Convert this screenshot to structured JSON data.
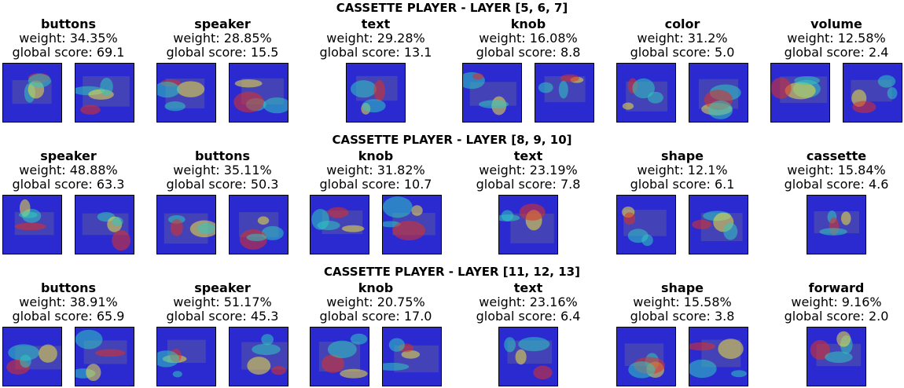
{
  "rows": [
    {
      "title": "CASSETTE PLAYER - LAYER [5, 6, 7]",
      "concepts": [
        {
          "name": "buttons",
          "weight": "weight: 34.35%",
          "score": "global score: 69.1",
          "images": 2
        },
        {
          "name": "speaker",
          "weight": "weight: 28.85%",
          "score": "global score: 15.5",
          "images": 2
        },
        {
          "name": "text",
          "weight": "weight: 29.28%",
          "score": "global score: 13.1",
          "images": 1
        },
        {
          "name": "knob",
          "weight": "weight: 16.08%",
          "score": "global score: 8.8",
          "images": 2
        },
        {
          "name": "color",
          "weight": "weight: 31.2%",
          "score": "global score: 5.0",
          "images": 2
        },
        {
          "name": "volume",
          "weight": "weight: 12.58%",
          "score": "global score: 2.4",
          "images": 2
        }
      ]
    },
    {
      "title": "CASSETTE PLAYER - LAYER [8, 9, 10]",
      "concepts": [
        {
          "name": "speaker",
          "weight": "weight: 48.88%",
          "score": "global score: 63.3",
          "images": 2
        },
        {
          "name": "buttons",
          "weight": "weight: 35.11%",
          "score": "global score: 50.3",
          "images": 2
        },
        {
          "name": "knob",
          "weight": "weight: 31.82%",
          "score": "global score: 10.7",
          "images": 2
        },
        {
          "name": "text",
          "weight": "weight: 23.19%",
          "score": "global score: 7.8",
          "images": 1
        },
        {
          "name": "shape",
          "weight": "weight: 12.1%",
          "score": "global score: 6.1",
          "images": 2
        },
        {
          "name": "cassette",
          "weight": "weight: 15.84%",
          "score": "global score: 4.6",
          "images": 1
        }
      ]
    },
    {
      "title": "CASSETTE PLAYER - LAYER [11, 12, 13]",
      "concepts": [
        {
          "name": "buttons",
          "weight": "weight: 38.91%",
          "score": "global score: 65.9",
          "images": 2
        },
        {
          "name": "speaker",
          "weight": "weight: 51.17%",
          "score": "global score: 45.3",
          "images": 2
        },
        {
          "name": "knob",
          "weight": "weight: 20.75%",
          "score": "global score: 17.0",
          "images": 2
        },
        {
          "name": "text",
          "weight": "weight: 23.16%",
          "score": "global score: 6.4",
          "images": 1
        },
        {
          "name": "shape",
          "weight": "weight: 15.58%",
          "score": "global score: 3.8",
          "images": 2
        },
        {
          "name": "forward",
          "weight": "weight: 9.16%",
          "score": "global score: 2.0",
          "images": 1
        }
      ]
    }
  ],
  "colors": {
    "heat_low": "#2a2ad0",
    "heat_mid": "#30c8c0",
    "heat_warm": "#f0e040",
    "heat_high": "#e03020",
    "border": "#000000"
  }
}
